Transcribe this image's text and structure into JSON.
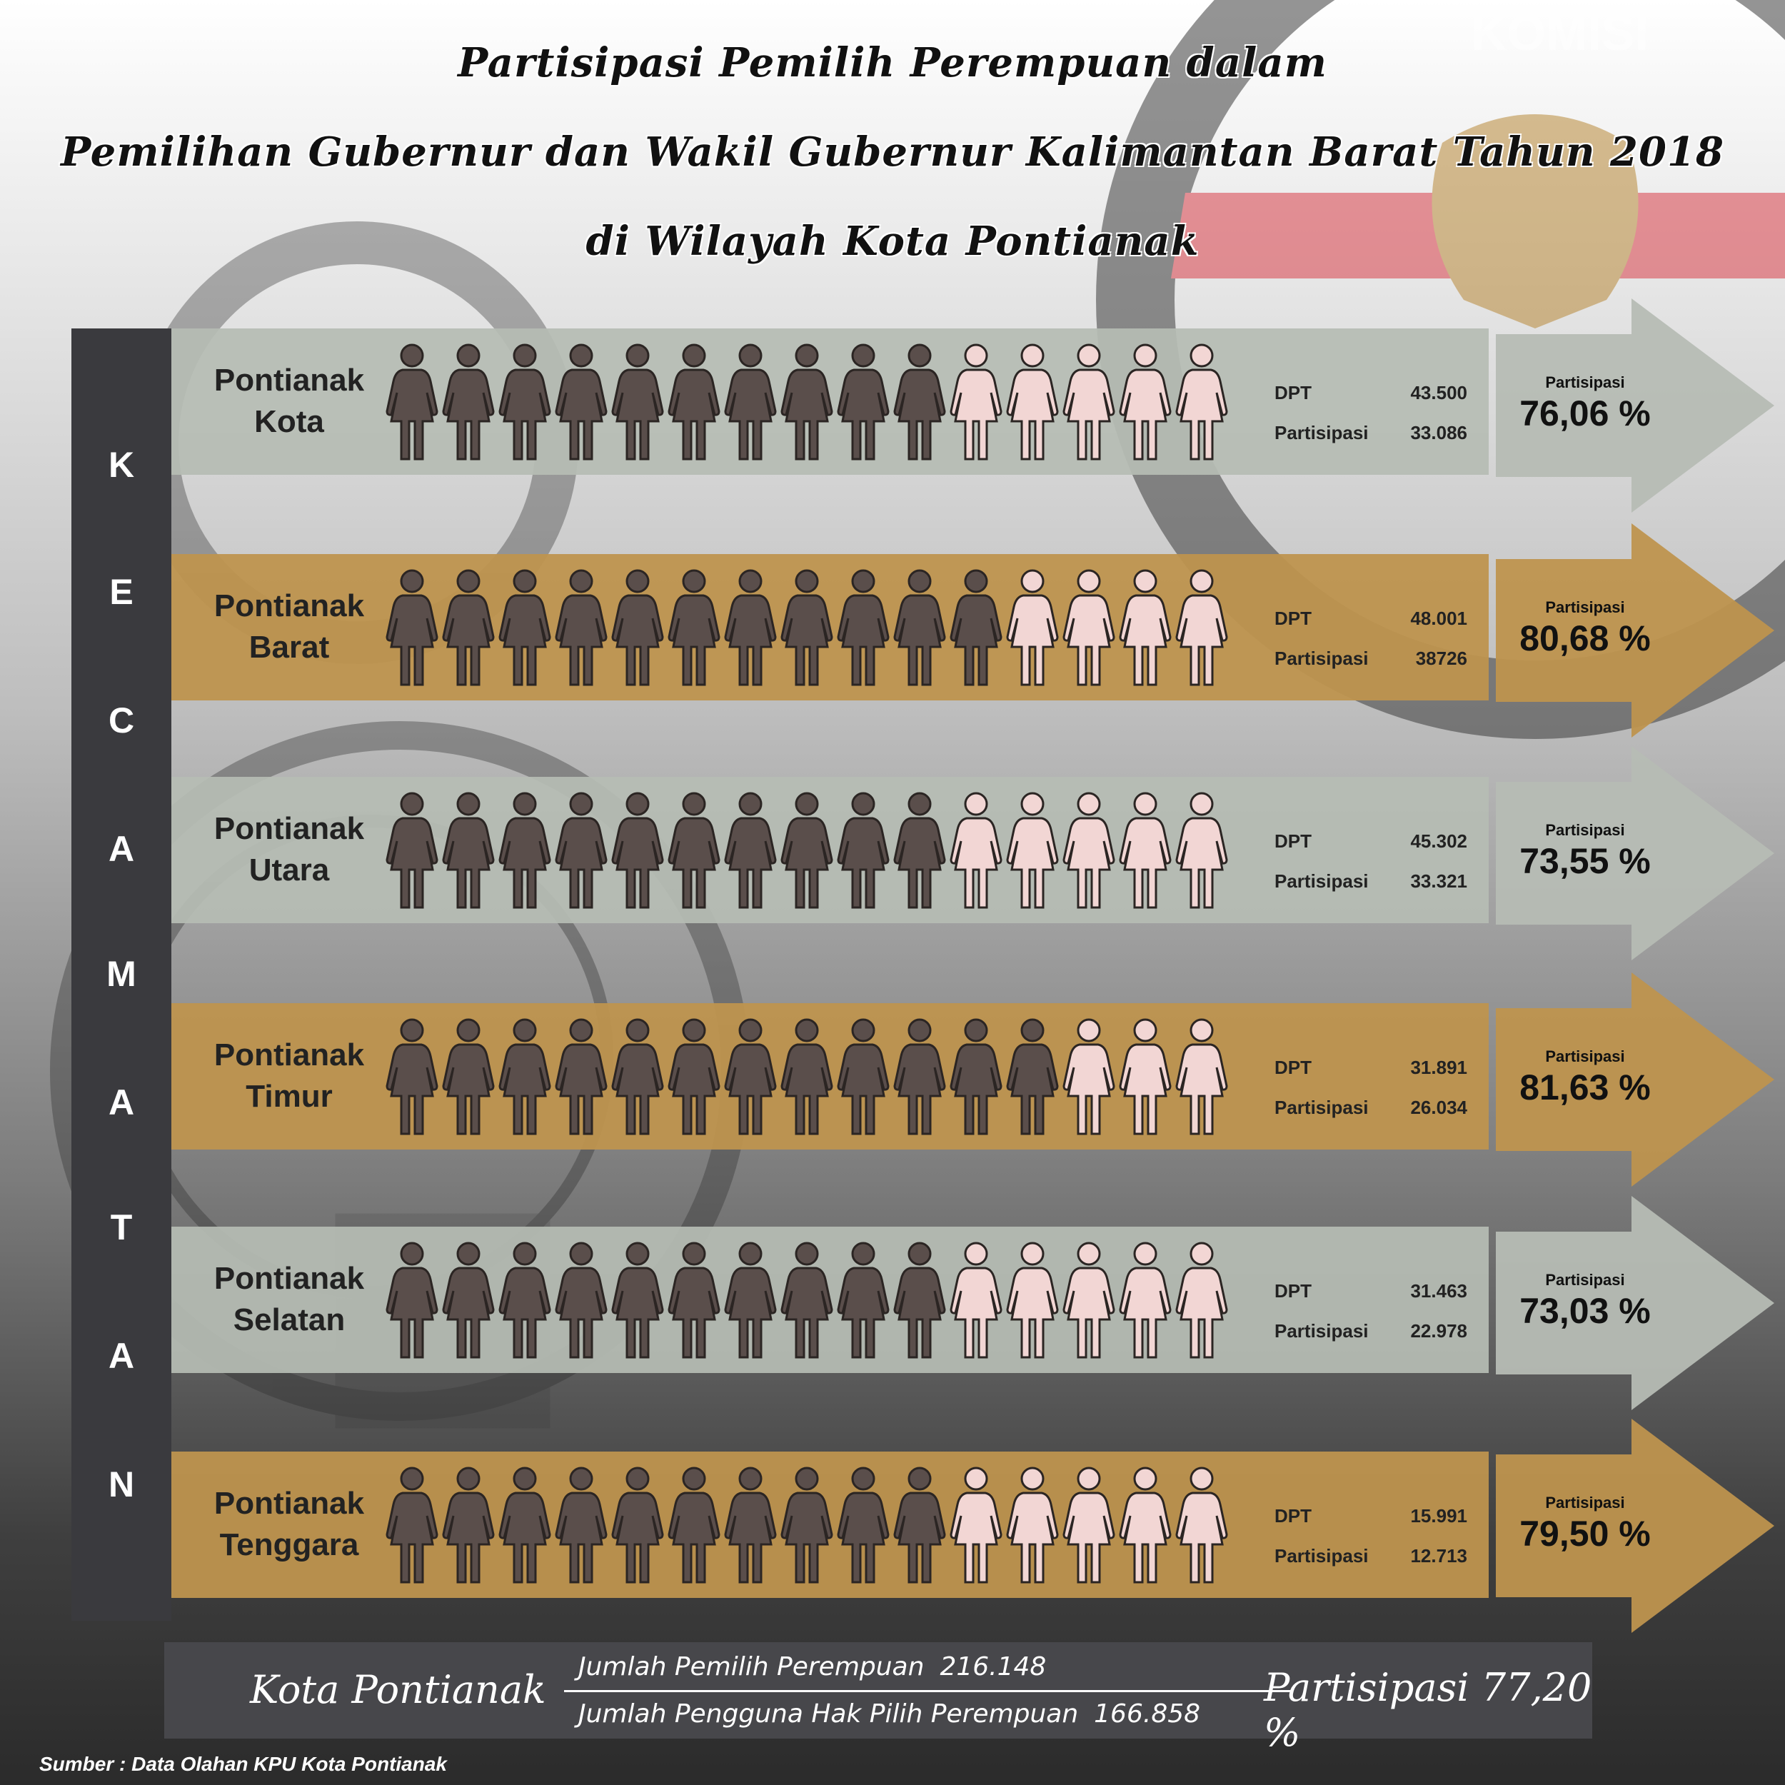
{
  "title": {
    "line1": "Partisipasi Pemilih Perempuan dalam",
    "line2": "Pemilihan Gubernur dan Wakil Gubernur  Kalimantan Barat Tahun 2018",
    "line3": "di Wilayah  Kota Pontianak"
  },
  "background_logo_text": "KOMISI",
  "side_label": [
    "K",
    "E",
    "C",
    "A",
    "M",
    "A",
    "T",
    "A",
    "N"
  ],
  "colors": {
    "grey_row": "#b6bcb4",
    "gold_row": "#be944e",
    "participant_icon": "#5a4e4b",
    "non_participant_icon": "#f2d6d4",
    "side_panel": "#3a3a3e"
  },
  "icons": {
    "participant": "woman-figure-dark-icon",
    "non_participant": "woman-figure-light-icon"
  },
  "chart_data": {
    "type": "table",
    "title": "Partisipasi Pemilih Perempuan dalam Pemilihan Gubernur dan Wakil Gubernur Kalimantan Barat Tahun 2018 di Wilayah Kota Pontianak",
    "dpt_label": "DPT",
    "participation_label": "Partisipasi",
    "rows": [
      {
        "name_line1": "Pontianak",
        "name_line2": "Kota",
        "style": "grey",
        "dpt": "43.500",
        "partisipasi": "33.086",
        "percent": "76,06 %",
        "dark_icons": 10,
        "light_icons": 5
      },
      {
        "name_line1": "Pontianak",
        "name_line2": "Barat",
        "style": "gold",
        "dpt": "48.001",
        "partisipasi": "38726",
        "percent": "80,68 %",
        "dark_icons": 11,
        "light_icons": 4
      },
      {
        "name_line1": "Pontianak",
        "name_line2": "Utara",
        "style": "grey",
        "dpt": "45.302",
        "partisipasi": "33.321",
        "percent": "73,55 %",
        "dark_icons": 10,
        "light_icons": 5
      },
      {
        "name_line1": "Pontianak",
        "name_line2": "Timur",
        "style": "gold",
        "dpt": "31.891",
        "partisipasi": "26.034",
        "percent": "81,63 %",
        "dark_icons": 12,
        "light_icons": 3
      },
      {
        "name_line1": "Pontianak",
        "name_line2": "Selatan",
        "style": "grey",
        "dpt": "31.463",
        "partisipasi": "22.978",
        "percent": "73,03 %",
        "dark_icons": 10,
        "light_icons": 5
      },
      {
        "name_line1": "Pontianak",
        "name_line2": "Tenggara",
        "style": "gold",
        "dpt": "15.991",
        "partisipasi": "12.713",
        "percent": "79,50 %",
        "dark_icons": 10,
        "light_icons": 5
      }
    ]
  },
  "summary": {
    "city": "Kota Pontianak",
    "numerator_label": "Jumlah Pemilih Perempuan",
    "numerator_value": "216.148",
    "denominator_label": "Jumlah Pengguna Hak Pilih  Perempuan",
    "denominator_value": "166.858",
    "result": "Partisipasi 77,20 %"
  },
  "source": "Sumber : Data Olahan KPU Kota Pontianak"
}
